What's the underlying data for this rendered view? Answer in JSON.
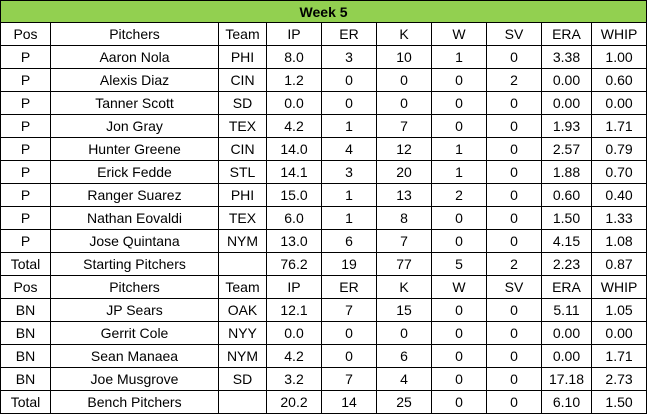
{
  "title": "Week 5",
  "columns": [
    "Pos",
    "Pitchers",
    "Team",
    "IP",
    "ER",
    "K",
    "W",
    "SV",
    "ERA",
    "WHIP"
  ],
  "starting": {
    "rows": [
      [
        "P",
        "Aaron Nola",
        "PHI",
        "8.0",
        "3",
        "10",
        "1",
        "0",
        "3.38",
        "1.00"
      ],
      [
        "P",
        "Alexis Diaz",
        "CIN",
        "1.2",
        "0",
        "0",
        "0",
        "2",
        "0.00",
        "0.60"
      ],
      [
        "P",
        "Tanner Scott",
        "SD",
        "0.0",
        "0",
        "0",
        "0",
        "0",
        "0.00",
        "0.00"
      ],
      [
        "P",
        "Jon Gray",
        "TEX",
        "4.2",
        "1",
        "7",
        "0",
        "0",
        "1.93",
        "1.71"
      ],
      [
        "P",
        "Hunter Greene",
        "CIN",
        "14.0",
        "4",
        "12",
        "1",
        "0",
        "2.57",
        "0.79"
      ],
      [
        "P",
        "Erick Fedde",
        "STL",
        "14.1",
        "3",
        "20",
        "1",
        "0",
        "1.88",
        "0.70"
      ],
      [
        "P",
        "Ranger Suarez",
        "PHI",
        "15.0",
        "1",
        "13",
        "2",
        "0",
        "0.60",
        "0.40"
      ],
      [
        "P",
        "Nathan Eovaldi",
        "TEX",
        "6.0",
        "1",
        "8",
        "0",
        "0",
        "1.50",
        "1.33"
      ],
      [
        "P",
        "Jose Quintana",
        "NYM",
        "13.0",
        "6",
        "7",
        "0",
        "0",
        "4.15",
        "1.08"
      ]
    ],
    "total": [
      "Total",
      "Starting Pitchers",
      "",
      "76.2",
      "19",
      "77",
      "5",
      "2",
      "2.23",
      "0.87"
    ]
  },
  "bench": {
    "rows": [
      [
        "BN",
        "JP Sears",
        "OAK",
        "12.1",
        "7",
        "15",
        "0",
        "0",
        "5.11",
        "1.05"
      ],
      [
        "BN",
        "Gerrit Cole",
        "NYY",
        "0.0",
        "0",
        "0",
        "0",
        "0",
        "0.00",
        "0.00"
      ],
      [
        "BN",
        "Sean Manaea",
        "NYM",
        "4.2",
        "0",
        "6",
        "0",
        "0",
        "0.00",
        "1.71"
      ],
      [
        "BN",
        "Joe Musgrove",
        "SD",
        "3.2",
        "7",
        "4",
        "0",
        "0",
        "17.18",
        "2.73"
      ]
    ],
    "total": [
      "Total",
      "Bench Pitchers",
      "",
      "20.2",
      "14",
      "25",
      "0",
      "0",
      "6.10",
      "1.50"
    ]
  },
  "colors": {
    "title_background": "#92d050",
    "grid": "#000000"
  }
}
